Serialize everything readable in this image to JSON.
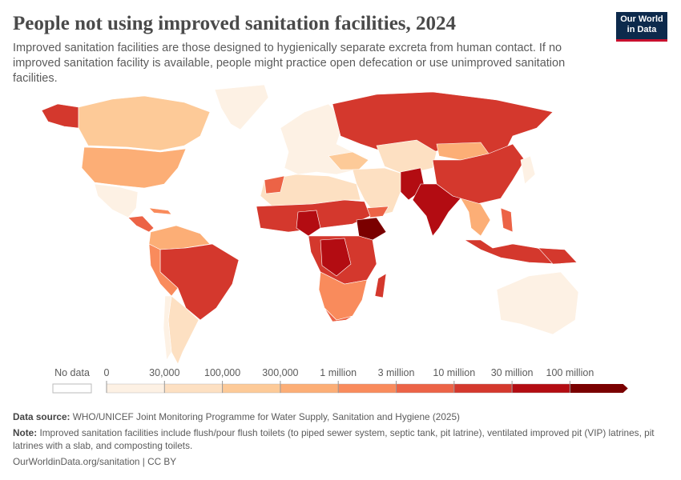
{
  "header": {
    "title": "People not using improved sanitation facilities, 2024",
    "subtitle": "Improved sanitation facilities are those designed to hygienically separate excreta from human contact. If no improved sanitation facility is available, people might practice open defecation or use unimproved sanitation facilities.",
    "logo": [
      "Our World",
      "in Data"
    ]
  },
  "legend": {
    "no_data_label": "No data",
    "ticks": [
      0,
      {
        "value": 30000,
        "label": "30,000"
      },
      {
        "value": 100000,
        "label": "100,000"
      },
      {
        "value": 300000,
        "label": "300,000"
      },
      {
        "value": 1000000,
        "label": "1 million"
      },
      {
        "value": 3000000,
        "label": "3 million"
      },
      {
        "value": 10000000,
        "label": "10 million"
      },
      {
        "value": 30000000,
        "label": "30 million"
      },
      {
        "value": 100000000,
        "label": "100 million"
      }
    ],
    "colors": [
      "#fdf1e4",
      "#fde0c2",
      "#fdca98",
      "#fcae76",
      "#f98b5c",
      "#ec6346",
      "#d4382d",
      "#b30c12",
      "#7a0000"
    ]
  },
  "footer": {
    "source_label": "Data source:",
    "source": "WHO/UNICEF Joint Monitoring Programme for Water Supply, Sanitation and Hygiene (2025)",
    "note_label": "Note:",
    "note": "Improved sanitation facilities include flush/pour flush toilets (to piped sewer system, septic tank, pit latrine), ventilated improved pit (VIP) latrines, pit latrines with a slab, and composting toilets.",
    "url": "OurWorldinData.org/sanitation | CC BY"
  }
}
